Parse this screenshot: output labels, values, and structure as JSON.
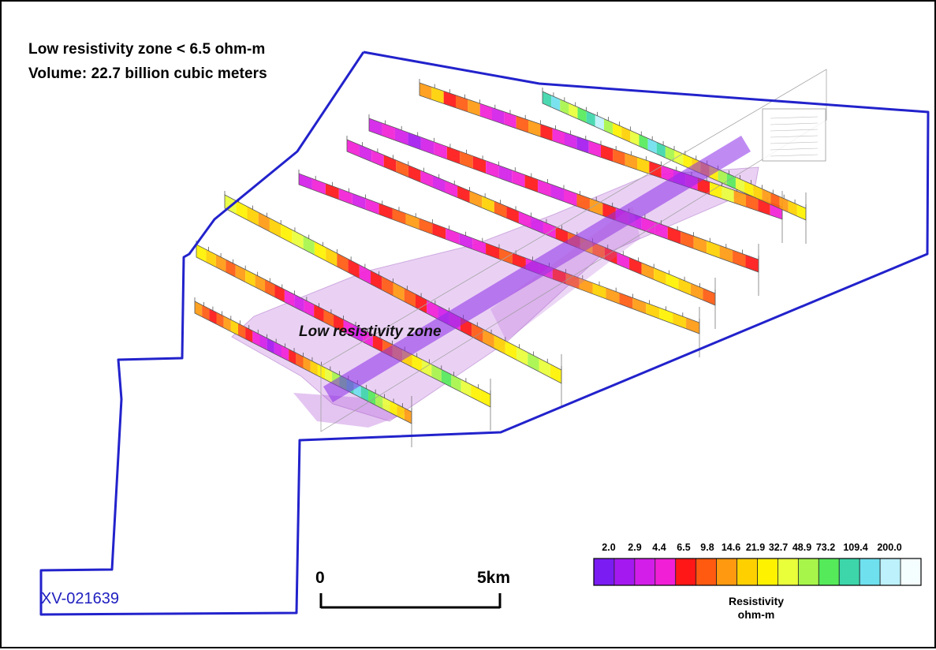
{
  "header": {
    "line1": "Low resistivity zone < 6.5 ohm-m",
    "line2": "Volume: 22.7 billion cubic meters"
  },
  "map": {
    "zone_label": "Low resistivity zone",
    "sheet_id": "XV-021639",
    "boundary_color": "#2222cc",
    "zone_color": "#b25ad6",
    "icons": [
      "survey-boundary-polygon",
      "resistivity-section",
      "low-resistivity-volume"
    ]
  },
  "scale_bar": {
    "start": "0",
    "end": "5km"
  },
  "legend": {
    "title": "Resistivity",
    "unit": "ohm-m",
    "ticks": [
      "2.0",
      "2.9",
      "4.4",
      "6.5",
      "9.8",
      "14.6",
      "21.9",
      "32.7",
      "48.9",
      "73.2",
      "109.4",
      "200.0"
    ],
    "colors": [
      "#7a1cf2",
      "#a419ef",
      "#d21ee8",
      "#f11fd6",
      "#ff1717",
      "#ff5a10",
      "#ff9a10",
      "#ffd000",
      "#fff200",
      "#e9ff3a",
      "#a7f54a",
      "#55ea5a",
      "#3dd6aa",
      "#6fe0ee",
      "#bdf1fb",
      "#f4feff"
    ]
  }
}
